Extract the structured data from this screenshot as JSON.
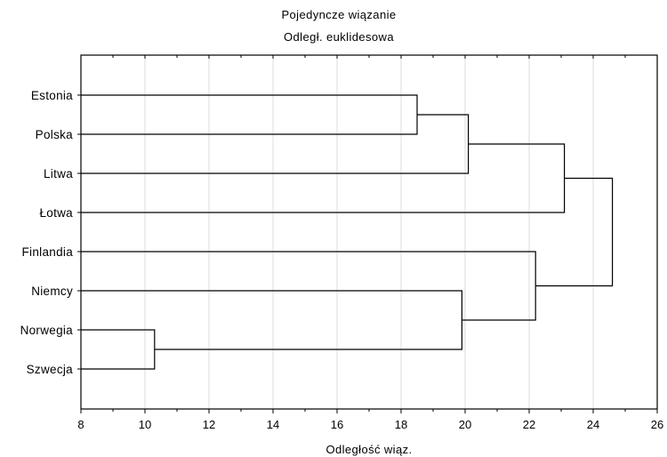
{
  "chart_data": {
    "type": "dendrogram",
    "title": "Pojedyncze wiązanie",
    "subtitle": "Odległ. euklidesowa",
    "xlabel": "Odległość wiąz.",
    "xlim": [
      8,
      26
    ],
    "x_ticks": [
      8,
      10,
      12,
      14,
      16,
      18,
      20,
      22,
      24,
      26
    ],
    "grid": "vertical",
    "leaves": [
      "Estonia",
      "Polska",
      "Litwa",
      "Łotwa",
      "Finlandia",
      "Niemcy",
      "Norwegia",
      "Szwecja"
    ],
    "merges": [
      {
        "id": "m1",
        "left": "Norwegia",
        "right": "Szwecja",
        "height": 10.3
      },
      {
        "id": "m2",
        "left": "Estonia",
        "right": "Polska",
        "height": 18.5
      },
      {
        "id": "m3",
        "left": "Niemcy",
        "right": "m1",
        "height": 19.9
      },
      {
        "id": "m4",
        "left": "m2",
        "right": "Litwa",
        "height": 20.1
      },
      {
        "id": "m5",
        "left": "Finlandia",
        "right": "m3",
        "height": 22.2
      },
      {
        "id": "m6",
        "left": "m4",
        "right": "Łotwa",
        "height": 23.1
      },
      {
        "id": "m7",
        "left": "m6",
        "right": "m5",
        "height": 24.6
      }
    ]
  }
}
